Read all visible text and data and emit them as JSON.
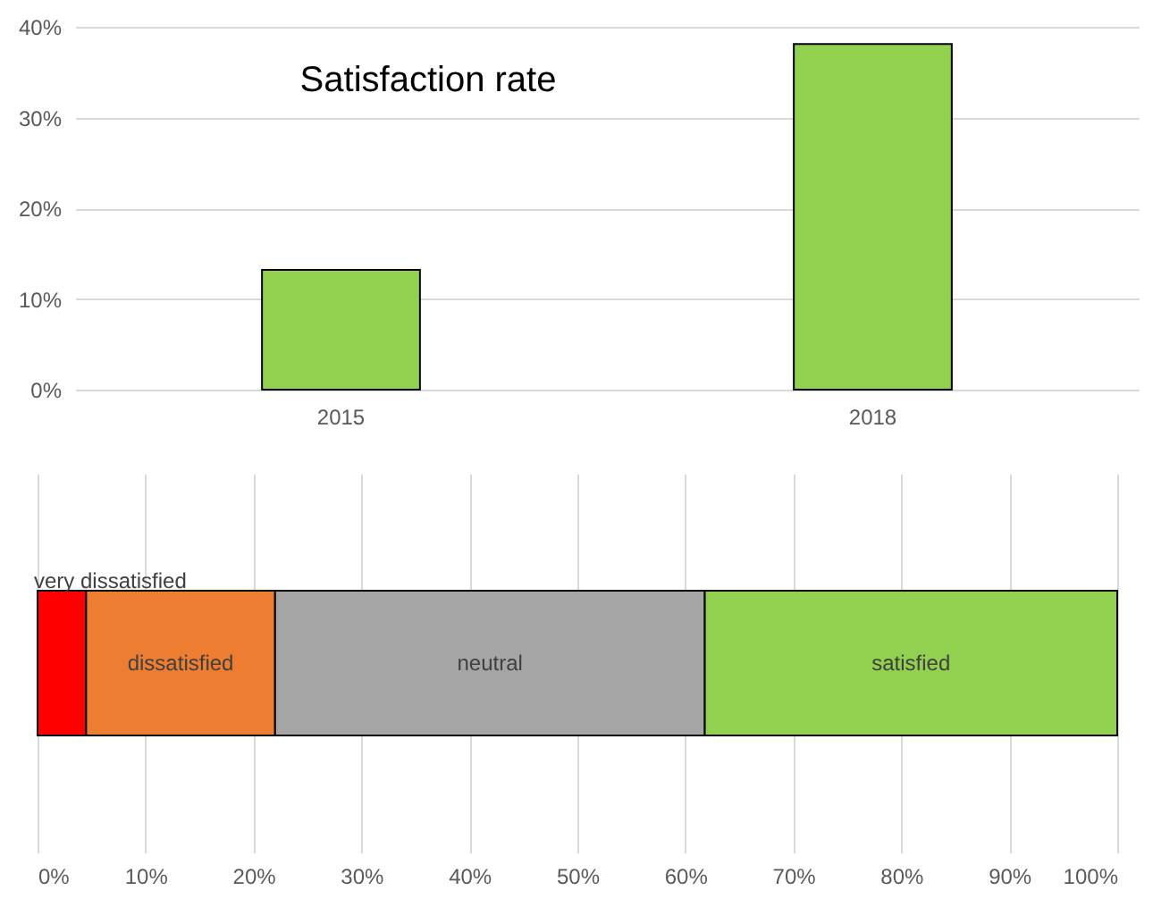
{
  "chart_data": [
    {
      "type": "bar",
      "title": "Satisfaction rate",
      "categories": [
        "2015",
        "2018"
      ],
      "values": [
        13.2,
        38.1
      ],
      "color": "#92d050",
      "ylim": [
        0,
        40
      ],
      "yticks": [
        {
          "value": 0,
          "label": "0%"
        },
        {
          "value": 10,
          "label": "10%"
        },
        {
          "value": 20,
          "label": "20%"
        },
        {
          "value": 30,
          "label": "30%"
        },
        {
          "value": 40,
          "label": "40%"
        }
      ],
      "grid": "y"
    },
    {
      "type": "bar",
      "orientation": "horizontal",
      "stacked": true,
      "categories": [
        null
      ],
      "series": [
        {
          "name": "very dissatisfied",
          "color": "#ff0000",
          "values": [
            4.5
          ]
        },
        {
          "name": "dissatisfied",
          "color": "#ed7d31",
          "values": [
            17.5
          ]
        },
        {
          "name": "neutral",
          "color": "#a5a5a5",
          "values": [
            39.8
          ]
        },
        {
          "name": "satisfied",
          "color": "#92d050",
          "values": [
            38.2
          ]
        }
      ],
      "xlim": [
        0,
        100
      ],
      "xticks": [
        {
          "value": 0,
          "label": "0%"
        },
        {
          "value": 10,
          "label": "10%"
        },
        {
          "value": 20,
          "label": "20%"
        },
        {
          "value": 30,
          "label": "30%"
        },
        {
          "value": 40,
          "label": "40%"
        },
        {
          "value": 50,
          "label": "50%"
        },
        {
          "value": 60,
          "label": "60%"
        },
        {
          "value": 70,
          "label": "70%"
        },
        {
          "value": 80,
          "label": "80%"
        },
        {
          "value": 90,
          "label": "90%"
        },
        {
          "value": 100,
          "label": "100%"
        }
      ],
      "grid": "x",
      "tick_labels": "x"
    }
  ]
}
